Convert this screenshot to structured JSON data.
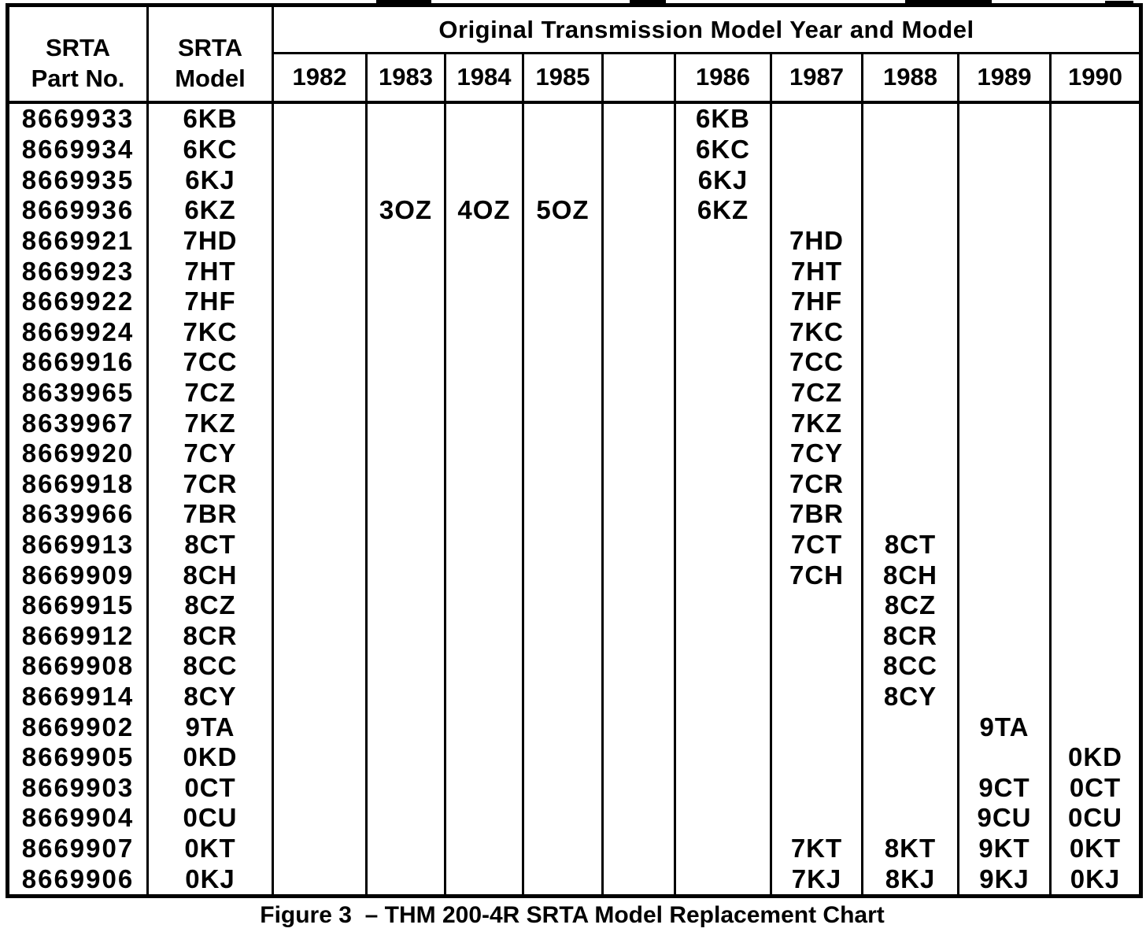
{
  "document": {
    "caption": "Figure 3  – THM 200-4R SRTA Model Replacement Chart"
  },
  "table": {
    "corner_header": {
      "col1": "SRTA\nPart No.",
      "col2": "SRTA\nModel"
    },
    "span_header": "Original Transmission Model Year and Model",
    "year_columns": [
      "1982",
      "1983",
      "1984",
      "1985",
      "",
      "1986",
      "1987",
      "1988",
      "1989",
      "1990"
    ],
    "rows": [
      {
        "part_no": "8669933",
        "model": "6KB",
        "cells": [
          "",
          "",
          "",
          "",
          "",
          "6KB",
          "",
          "",
          "",
          ""
        ]
      },
      {
        "part_no": "8669934",
        "model": "6KC",
        "cells": [
          "",
          "",
          "",
          "",
          "",
          "6KC",
          "",
          "",
          "",
          ""
        ]
      },
      {
        "part_no": "8669935",
        "model": "6KJ",
        "cells": [
          "",
          "",
          "",
          "",
          "",
          "6KJ",
          "",
          "",
          "",
          ""
        ]
      },
      {
        "part_no": "8669936",
        "model": "6KZ",
        "cells": [
          "",
          "3OZ",
          "4OZ",
          "5OZ",
          "",
          "6KZ",
          "",
          "",
          "",
          ""
        ]
      },
      {
        "part_no": "8669921",
        "model": "7HD",
        "cells": [
          "",
          "",
          "",
          "",
          "",
          "",
          "7HD",
          "",
          "",
          ""
        ]
      },
      {
        "part_no": "8669923",
        "model": "7HT",
        "cells": [
          "",
          "",
          "",
          "",
          "",
          "",
          "7HT",
          "",
          "",
          ""
        ]
      },
      {
        "part_no": "8669922",
        "model": "7HF",
        "cells": [
          "",
          "",
          "",
          "",
          "",
          "",
          "7HF",
          "",
          "",
          ""
        ]
      },
      {
        "part_no": "8669924",
        "model": "7KC",
        "cells": [
          "",
          "",
          "",
          "",
          "",
          "",
          "7KC",
          "",
          "",
          ""
        ]
      },
      {
        "part_no": "8669916",
        "model": "7CC",
        "cells": [
          "",
          "",
          "",
          "",
          "",
          "",
          "7CC",
          "",
          "",
          ""
        ]
      },
      {
        "part_no": "8639965",
        "model": "7CZ",
        "cells": [
          "",
          "",
          "",
          "",
          "",
          "",
          "7CZ",
          "",
          "",
          ""
        ]
      },
      {
        "part_no": "8639967",
        "model": "7KZ",
        "cells": [
          "",
          "",
          "",
          "",
          "",
          "",
          "7KZ",
          "",
          "",
          ""
        ]
      },
      {
        "part_no": "8669920",
        "model": "7CY",
        "cells": [
          "",
          "",
          "",
          "",
          "",
          "",
          "7CY",
          "",
          "",
          ""
        ]
      },
      {
        "part_no": "8669918",
        "model": "7CR",
        "cells": [
          "",
          "",
          "",
          "",
          "",
          "",
          "7CR",
          "",
          "",
          ""
        ]
      },
      {
        "part_no": "8639966",
        "model": "7BR",
        "cells": [
          "",
          "",
          "",
          "",
          "",
          "",
          "7BR",
          "",
          "",
          ""
        ]
      },
      {
        "part_no": "8669913",
        "model": "8CT",
        "cells": [
          "",
          "",
          "",
          "",
          "",
          "",
          "7CT",
          "8CT",
          "",
          ""
        ]
      },
      {
        "part_no": "8669909",
        "model": "8CH",
        "cells": [
          "",
          "",
          "",
          "",
          "",
          "",
          "7CH",
          "8CH",
          "",
          ""
        ]
      },
      {
        "part_no": "8669915",
        "model": "8CZ",
        "cells": [
          "",
          "",
          "",
          "",
          "",
          "",
          "",
          "8CZ",
          "",
          ""
        ]
      },
      {
        "part_no": "8669912",
        "model": "8CR",
        "cells": [
          "",
          "",
          "",
          "",
          "",
          "",
          "",
          "8CR",
          "",
          ""
        ]
      },
      {
        "part_no": "8669908",
        "model": "8CC",
        "cells": [
          "",
          "",
          "",
          "",
          "",
          "",
          "",
          "8CC",
          "",
          ""
        ]
      },
      {
        "part_no": "8669914",
        "model": "8CY",
        "cells": [
          "",
          "",
          "",
          "",
          "",
          "",
          "",
          "8CY",
          "",
          ""
        ]
      },
      {
        "part_no": "8669902",
        "model": "9TA",
        "cells": [
          "",
          "",
          "",
          "",
          "",
          "",
          "",
          "",
          "9TA",
          ""
        ]
      },
      {
        "part_no": "8669905",
        "model": "0KD",
        "cells": [
          "",
          "",
          "",
          "",
          "",
          "",
          "",
          "",
          "",
          "0KD"
        ]
      },
      {
        "part_no": "8669903",
        "model": "0CT",
        "cells": [
          "",
          "",
          "",
          "",
          "",
          "",
          "",
          "",
          "9CT",
          "0CT"
        ]
      },
      {
        "part_no": "8669904",
        "model": "0CU",
        "cells": [
          "",
          "",
          "",
          "",
          "",
          "",
          "",
          "",
          "9CU",
          "0CU"
        ]
      },
      {
        "part_no": "8669907",
        "model": "0KT",
        "cells": [
          "",
          "",
          "",
          "",
          "",
          "",
          "7KT",
          "8KT",
          "9KT",
          "0KT"
        ]
      },
      {
        "part_no": "8669906",
        "model": "0KJ",
        "cells": [
          "",
          "",
          "",
          "",
          "",
          "",
          "7KJ",
          "8KJ",
          "9KJ",
          "0KJ"
        ]
      }
    ]
  }
}
